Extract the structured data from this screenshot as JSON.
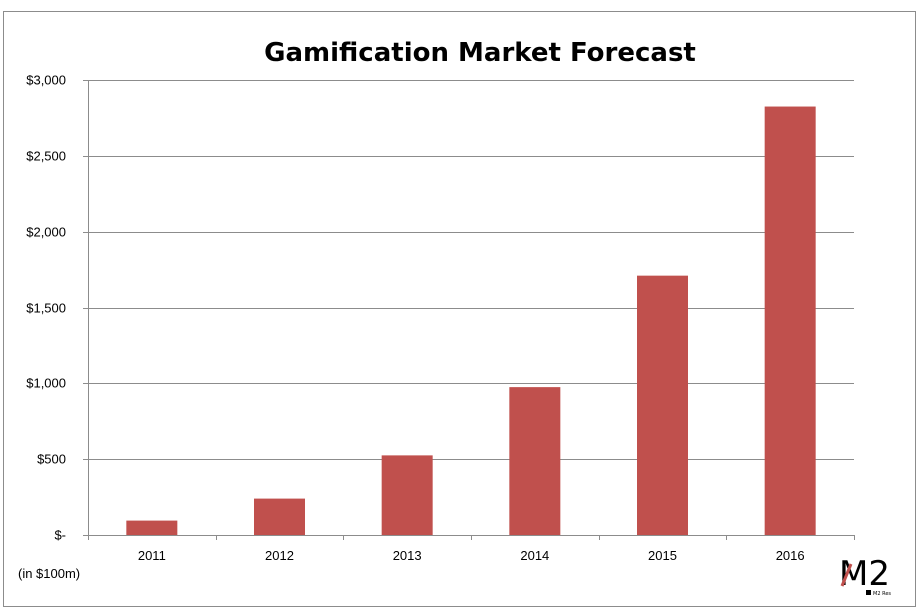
{
  "chart_data": {
    "type": "bar",
    "title": "Gamification Market Forecast",
    "categories": [
      "2011",
      "2012",
      "2013",
      "2014",
      "2015",
      "2016"
    ],
    "values": [
      95,
      240,
      525,
      975,
      1710,
      2825
    ],
    "ylim": [
      0,
      3000
    ],
    "yticks": [
      0,
      500,
      1000,
      1500,
      2000,
      2500,
      3000
    ],
    "ytick_labels": [
      "$-",
      "$500",
      "$1,000",
      "$1,500",
      "$2,000",
      "$2,500",
      "$3,000"
    ],
    "grid": true,
    "legend": "none",
    "bar_color": "#c0504d",
    "unit_note": "(in $100m)"
  },
  "logo": {
    "mark": "M2",
    "subtext": "M2 Res"
  }
}
